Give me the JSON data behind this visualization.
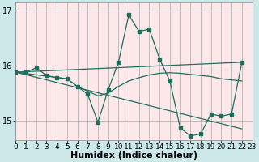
{
  "xlabel": "Humidex (Indice chaleur)",
  "bg_color": "#cce8e8",
  "plot_bg_color": "#fce8e8",
  "line_color": "#1e6e5e",
  "grid_color": "#aaaaaa",
  "xlim": [
    0,
    23
  ],
  "ylim": [
    14.65,
    17.15
  ],
  "yticks": [
    15,
    16,
    17
  ],
  "xticks": [
    0,
    1,
    2,
    3,
    4,
    5,
    6,
    7,
    8,
    9,
    10,
    11,
    12,
    13,
    14,
    15,
    16,
    17,
    18,
    19,
    20,
    21,
    22,
    23
  ],
  "series": [
    {
      "x": [
        0,
        1,
        2,
        3,
        4,
        5,
        6,
        7,
        8,
        9,
        10,
        11,
        12,
        13,
        14,
        15,
        16,
        17,
        18,
        19,
        20,
        21,
        22
      ],
      "y": [
        15.88,
        15.88,
        15.96,
        15.82,
        15.78,
        15.76,
        15.62,
        15.48,
        14.97,
        15.56,
        16.06,
        16.92,
        16.62,
        16.66,
        16.12,
        15.72,
        14.87,
        14.72,
        14.76,
        15.12,
        15.08,
        15.12,
        16.06
      ],
      "has_markers": true
    },
    {
      "x": [
        0,
        22
      ],
      "y": [
        15.88,
        16.06
      ],
      "has_markers": false
    },
    {
      "x": [
        0,
        22
      ],
      "y": [
        15.88,
        14.85
      ],
      "has_markers": false
    },
    {
      "x": [
        0,
        5,
        6,
        8,
        9,
        10,
        11,
        12,
        13,
        14,
        15,
        16,
        17,
        18,
        19,
        20,
        22
      ],
      "y": [
        15.88,
        15.76,
        15.62,
        15.45,
        15.5,
        15.62,
        15.72,
        15.78,
        15.83,
        15.86,
        15.87,
        15.86,
        15.84,
        15.82,
        15.8,
        15.76,
        15.72
      ],
      "has_markers": false
    }
  ],
  "marker_size": 2.5,
  "line_width": 0.9,
  "font_size_xlabel": 8,
  "font_size_tick": 7
}
